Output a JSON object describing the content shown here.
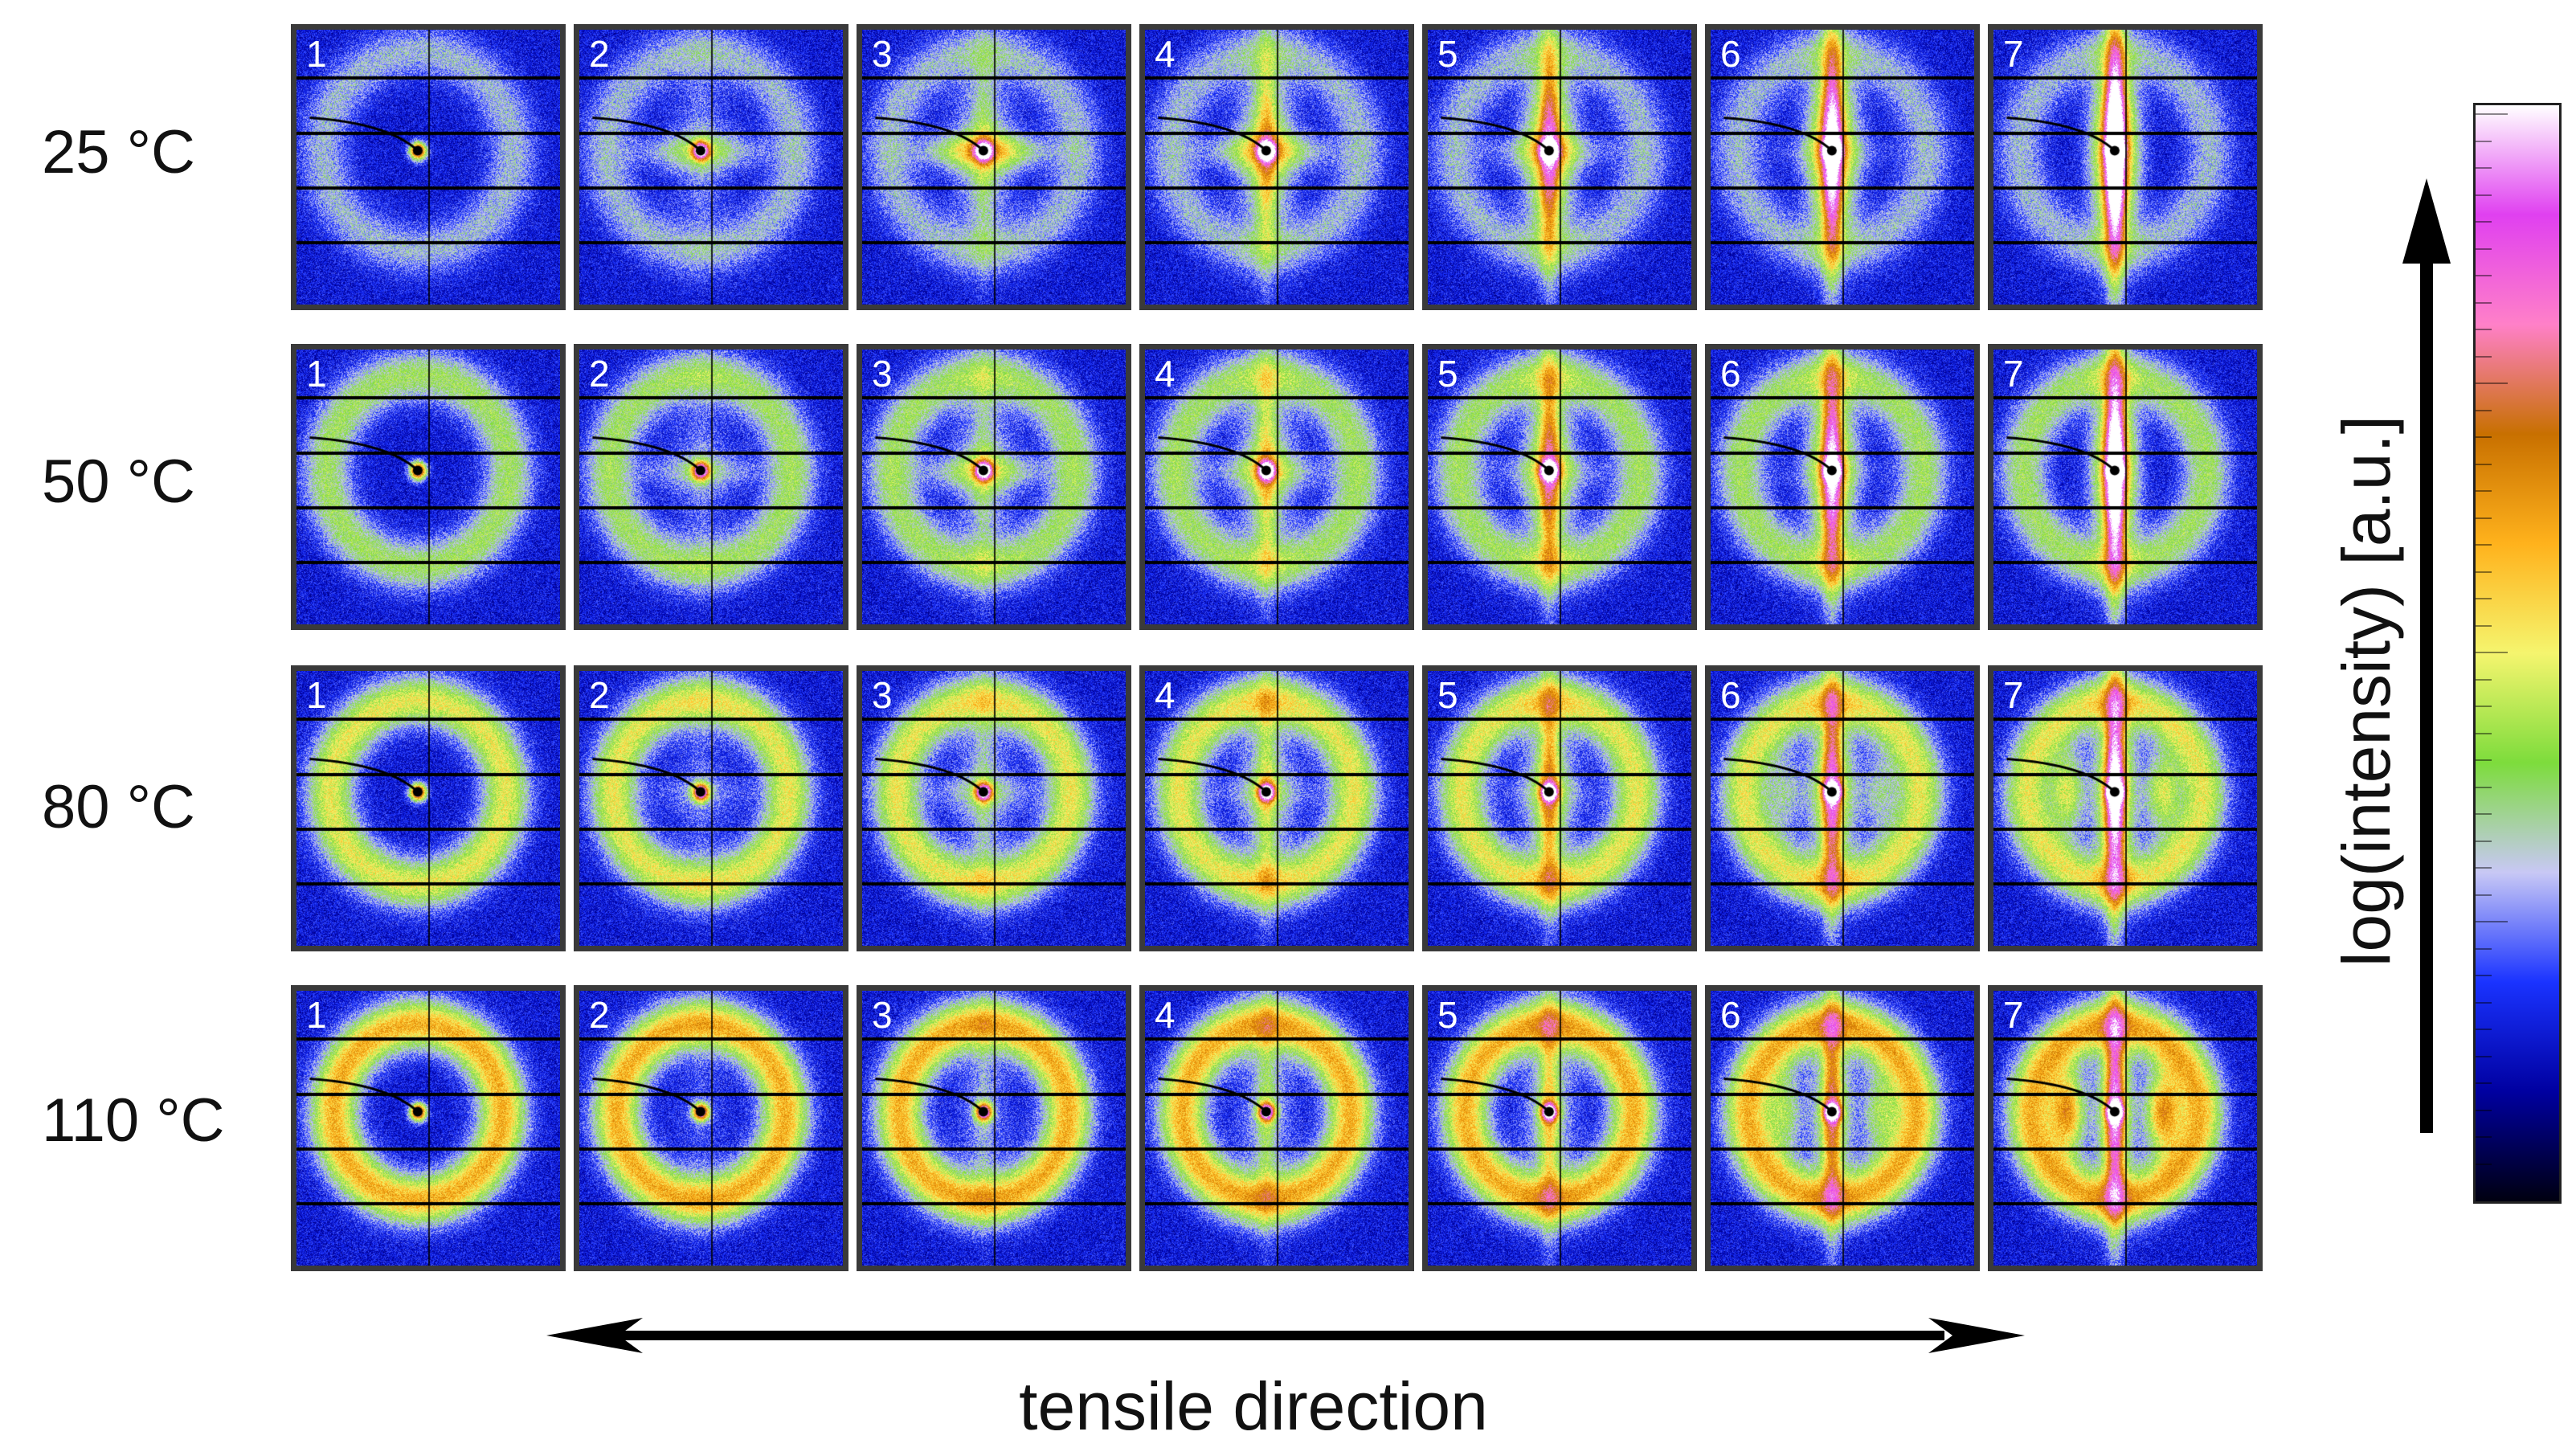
{
  "figure": {
    "rows": [
      {
        "label": "25 °C",
        "temperature_c": 25
      },
      {
        "label": "50 °C",
        "temperature_c": 50
      },
      {
        "label": "80 °C",
        "temperature_c": 80
      },
      {
        "label": "110 °C",
        "temperature_c": 110
      }
    ],
    "panel_labels": [
      "1",
      "2",
      "3",
      "4",
      "5",
      "6",
      "7"
    ],
    "colorbar_label": "log(intensity) [a.u.]",
    "tensile_label": "tensile direction",
    "colorbar_colors": [
      "#000010",
      "#0000a0",
      "#1a33ff",
      "#c8c8f5",
      "#7ddc3c",
      "#f5f56e",
      "#ffb21c",
      "#c87000",
      "#ff80c8",
      "#e040f0",
      "#ffffff"
    ],
    "colors": {
      "panel_border": "#3a3a3a",
      "arrow": "#000000",
      "text": "#111111"
    },
    "icons": {
      "vertical_arrow": "up-arrow-icon",
      "horizontal_arrow": "double-headed-arrow-icon"
    }
  }
}
